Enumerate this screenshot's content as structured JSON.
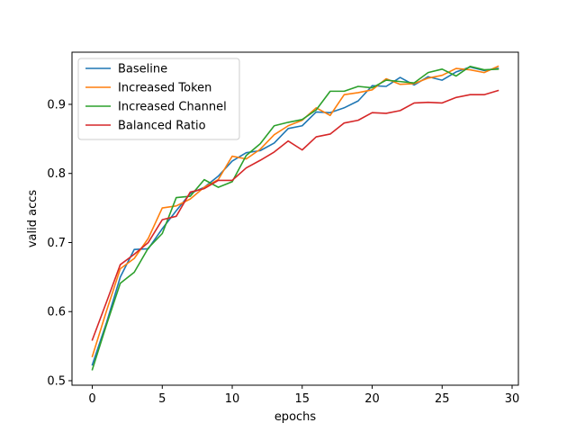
{
  "chart_data": {
    "type": "line",
    "xlabel": "epochs",
    "ylabel": "valid accs",
    "xlim": [
      -1.45,
      30.45
    ],
    "ylim": [
      0.4935,
      0.9755
    ],
    "xticks": [
      0,
      5,
      10,
      15,
      20,
      25,
      30
    ],
    "yticks": [
      0.5,
      0.6,
      0.7,
      0.8,
      0.9
    ],
    "ytick_labels": [
      "0.5",
      "0.6",
      "0.7",
      "0.8",
      "0.9"
    ],
    "xtick_labels": [
      "0",
      "5",
      "10",
      "15",
      "20",
      "25",
      "30"
    ],
    "grid": false,
    "legend_position": "upper-left",
    "x": [
      0,
      1,
      2,
      3,
      4,
      5,
      6,
      7,
      8,
      9,
      10,
      11,
      12,
      13,
      14,
      15,
      16,
      17,
      18,
      19,
      20,
      21,
      22,
      23,
      24,
      25,
      26,
      27,
      28,
      29
    ],
    "series": [
      {
        "name": "Baseline",
        "color": "#1f77b4",
        "values": [
          0.523,
          0.583,
          0.65,
          0.69,
          0.691,
          0.72,
          0.746,
          0.771,
          0.78,
          0.796,
          0.818,
          0.83,
          0.833,
          0.844,
          0.865,
          0.869,
          0.889,
          0.888,
          0.895,
          0.905,
          0.927,
          0.926,
          0.939,
          0.928,
          0.94,
          0.935,
          0.947,
          0.954,
          0.949,
          0.952
        ]
      },
      {
        "name": "Increased Token",
        "color": "#ff7f0e",
        "values": [
          0.535,
          0.6,
          0.662,
          0.677,
          0.706,
          0.75,
          0.753,
          0.763,
          0.78,
          0.791,
          0.825,
          0.821,
          0.835,
          0.856,
          0.869,
          0.877,
          0.895,
          0.884,
          0.914,
          0.917,
          0.921,
          0.937,
          0.929,
          0.93,
          0.938,
          0.942,
          0.952,
          0.95,
          0.946,
          0.955
        ]
      },
      {
        "name": "Increased Channel",
        "color": "#2ca02c",
        "values": [
          0.516,
          0.58,
          0.641,
          0.657,
          0.692,
          0.713,
          0.765,
          0.767,
          0.791,
          0.78,
          0.788,
          0.826,
          0.843,
          0.869,
          0.874,
          0.878,
          0.892,
          0.919,
          0.919,
          0.926,
          0.924,
          0.935,
          0.933,
          0.931,
          0.946,
          0.951,
          0.941,
          0.955,
          0.95,
          0.951
        ]
      },
      {
        "name": "Balanced Ratio",
        "color": "#d62728",
        "values": [
          0.559,
          0.613,
          0.668,
          0.683,
          0.7,
          0.733,
          0.738,
          0.773,
          0.778,
          0.79,
          0.79,
          0.808,
          0.819,
          0.831,
          0.847,
          0.834,
          0.853,
          0.857,
          0.873,
          0.877,
          0.888,
          0.887,
          0.891,
          0.902,
          0.903,
          0.902,
          0.91,
          0.914,
          0.914,
          0.92
        ]
      }
    ]
  }
}
